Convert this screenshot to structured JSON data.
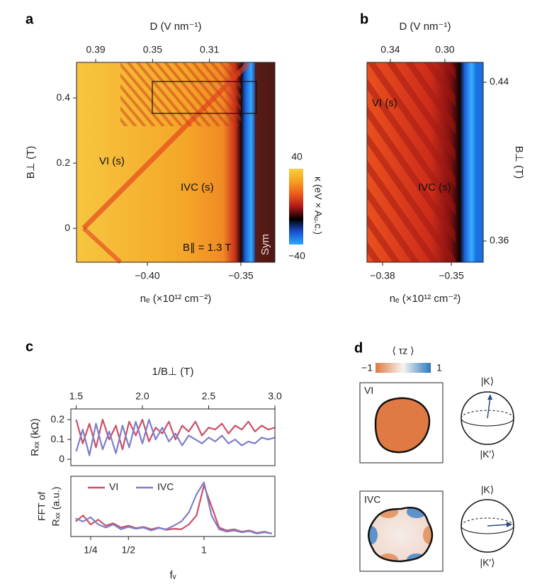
{
  "chart_data": [
    {
      "type": "heatmap",
      "panel_label": "a",
      "top_axis_label": "D (V nm⁻¹)",
      "x_label": "nₑ (×10¹² cm⁻²)",
      "y_label": "B⊥ (T)",
      "xlim": [
        -0.4379,
        -0.3318
      ],
      "xticks": [
        {
          "value": -0.4,
          "label": "−0.40"
        },
        {
          "value": -0.35,
          "label": "−0.35"
        }
      ],
      "ylim": [
        -0.104,
        0.509
      ],
      "yticks": [
        0,
        0.2,
        0.4
      ],
      "x2lim": [
        0.4035,
        0.264
      ],
      "x2ticks": [
        0.39,
        0.35,
        0.31
      ],
      "annotations": [
        "VI (s)",
        "IVC (s)",
        "B∥ = 1.3 T",
        "Sym"
      ],
      "colorbar": {
        "label": "κ (eV × Aᵤ.c.)",
        "lim": [
          -40,
          40
        ],
        "ticks": [
          40,
          {
            "value": -40,
            "label": "−40"
          }
        ],
        "colors": [
          "#2aa8ff",
          "#1a4fd0",
          "#000000",
          "#b0181a",
          "#ee5a1c",
          "#f6a020",
          "#f8d040"
        ]
      }
    },
    {
      "type": "heatmap",
      "panel_label": "b",
      "top_axis_label": "D (V nm⁻¹)",
      "x_label": "nₑ (×10¹² cm⁻²)",
      "y_label": "B⊥ (T)",
      "xlim": [
        -0.3868,
        -0.3361
      ],
      "xticks": [
        {
          "value": -0.38,
          "label": "−0.38"
        },
        {
          "value": -0.35,
          "label": "−0.35"
        }
      ],
      "ylim": [
        0.3493,
        0.45
      ],
      "yticks": [
        0.44,
        0.36
      ],
      "x2lim": [
        0.3571,
        0.2719
      ],
      "x2ticks": [
        0.34,
        {
          "value": 0.3,
          "label": "0.30"
        }
      ],
      "annotations": [
        "VI (s)",
        "IVC (s)"
      ]
    },
    {
      "type": "line",
      "panel_label": "c",
      "top_axis_label": "1/B⊥ (T)",
      "y_label": "Rₓₓ (kΩ)",
      "xlim": [
        1.46,
        3.0
      ],
      "xticks": [
        1.5,
        {
          "value": 2.0,
          "label": "2.0"
        },
        2.5,
        {
          "value": 3.0,
          "label": "3.0"
        }
      ],
      "ylim": [
        -0.032,
        0.254
      ],
      "yticks": [
        0,
        0.1,
        0.2
      ],
      "x": [
        1.5,
        1.55,
        1.6,
        1.65,
        1.7,
        1.75,
        1.8,
        1.85,
        1.9,
        1.95,
        2.0,
        2.05,
        2.1,
        2.15,
        2.2,
        2.25,
        2.3,
        2.35,
        2.4,
        2.45,
        2.5,
        2.55,
        2.6,
        2.65,
        2.7,
        2.75,
        2.8,
        2.85,
        2.9,
        2.95,
        3.0
      ],
      "series": [
        {
          "name": "VI",
          "color": "#cc5068",
          "values": [
            0.2,
            0.08,
            0.18,
            0.06,
            0.2,
            0.1,
            0.17,
            0.05,
            0.19,
            0.12,
            0.2,
            0.09,
            0.16,
            0.13,
            0.19,
            0.1,
            0.17,
            0.14,
            0.19,
            0.12,
            0.16,
            0.15,
            0.18,
            0.13,
            0.17,
            0.15,
            0.19,
            0.14,
            0.17,
            0.15,
            0.16
          ]
        },
        {
          "name": "IVC",
          "color": "#7d80c8",
          "values": [
            0.04,
            0.15,
            0.02,
            0.18,
            0.05,
            0.14,
            0.03,
            0.17,
            0.06,
            0.19,
            0.08,
            0.2,
            0.1,
            0.16,
            0.09,
            0.13,
            0.07,
            0.12,
            0.1,
            0.08,
            0.11,
            0.09,
            0.12,
            0.08,
            0.1,
            0.07,
            0.09,
            0.08,
            0.11,
            0.1,
            0.11
          ]
        }
      ]
    },
    {
      "type": "line",
      "x_label": "fᵥ",
      "y_label": [
        "FFT of",
        "Rₓₓ (a.u.)"
      ],
      "legend": "top-left",
      "xlim": [
        0.119,
        1.469
      ],
      "xticks": [
        {
          "value": 0.25,
          "label": "1/4"
        },
        {
          "value": 0.5,
          "label": "1/2"
        },
        1
      ],
      "ylim": [
        0,
        1
      ],
      "x": [
        0.15,
        0.2,
        0.25,
        0.3,
        0.35,
        0.4,
        0.45,
        0.5,
        0.55,
        0.6,
        0.65,
        0.7,
        0.75,
        0.8,
        0.85,
        0.9,
        0.95,
        1.0,
        1.05,
        1.1,
        1.15,
        1.2,
        1.25,
        1.3,
        1.35,
        1.4,
        1.45
      ],
      "series": [
        {
          "name": "VI",
          "color": "#cc5068",
          "values": [
            0.25,
            0.35,
            0.2,
            0.28,
            0.18,
            0.22,
            0.15,
            0.18,
            0.14,
            0.16,
            0.12,
            0.15,
            0.11,
            0.13,
            0.12,
            0.2,
            0.35,
            0.85,
            0.5,
            0.15,
            0.1,
            0.12,
            0.08,
            0.1,
            0.06,
            0.08,
            0.05
          ]
        },
        {
          "name": "IVC",
          "color": "#7d80c8",
          "values": [
            0.3,
            0.25,
            0.32,
            0.2,
            0.15,
            0.2,
            0.12,
            0.16,
            0.13,
            0.15,
            0.1,
            0.14,
            0.12,
            0.18,
            0.25,
            0.4,
            0.7,
            0.9,
            0.35,
            0.12,
            0.08,
            0.1,
            0.07,
            0.09,
            0.05,
            0.07,
            0.05
          ]
        }
      ]
    }
  ],
  "diagram": {
    "panel_label": "d",
    "colorbar_label": "⟨ τz ⟩",
    "colorbar_ticks": [
      {
        "value": -1,
        "label": "−1"
      },
      1
    ],
    "states": [
      {
        "label": "VI",
        "top": "|K⟩",
        "bottom": "|K′⟩"
      },
      {
        "label": "IVC",
        "top": "|K⟩",
        "bottom": "|K′⟩"
      }
    ]
  }
}
